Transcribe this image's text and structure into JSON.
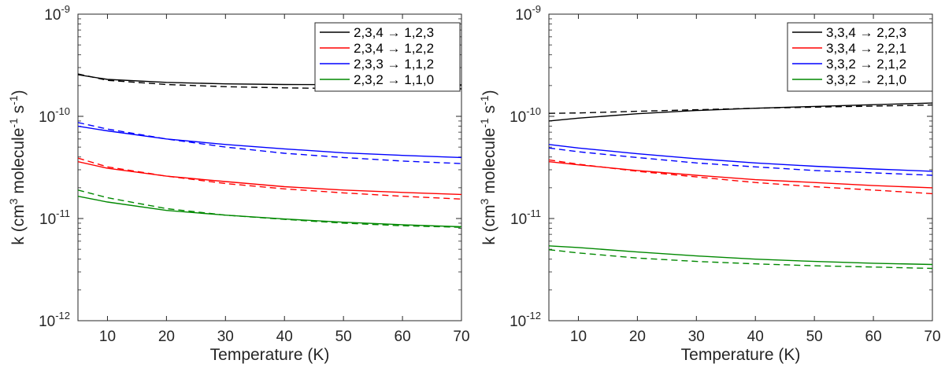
{
  "chart_data": [
    {
      "type": "line",
      "id": "left-panel",
      "xscale": "linear",
      "yscale": "log",
      "xlim": [
        5,
        70
      ],
      "ylim_exp": [
        -12,
        -9
      ],
      "xticks": [
        10,
        20,
        30,
        40,
        50,
        60,
        70
      ],
      "yticks_exp": [
        -12,
        -11,
        -10,
        -9
      ],
      "xlabel": "Temperature (K)",
      "ylabel": {
        "prefix": "k (cm",
        "sup1": "3",
        "middle": " molecule",
        "sup2": "-1",
        "middle2": " s",
        "sup3": "-1",
        "suffix": ")"
      },
      "legend_position": "top-right",
      "x": [
        5,
        10,
        20,
        30,
        40,
        50,
        60,
        70
      ],
      "series": [
        {
          "name": "2,3,4 → 1,2,3",
          "color": "#000000",
          "solid": [
            2.55e-10,
            2.3e-10,
            2.15e-10,
            2.08e-10,
            2.05e-10,
            2.04e-10,
            2.03e-10,
            2.03e-10
          ],
          "dashed": [
            2.6e-10,
            2.25e-10,
            2.05e-10,
            1.95e-10,
            1.9e-10,
            1.87e-10,
            1.86e-10,
            1.86e-10
          ]
        },
        {
          "name": "2,3,4 → 1,2,2",
          "color": "#ff0000",
          "solid": [
            3.6e-11,
            3.1e-11,
            2.6e-11,
            2.3e-11,
            2.05e-11,
            1.9e-11,
            1.8e-11,
            1.72e-11
          ],
          "dashed": [
            3.9e-11,
            3.2e-11,
            2.6e-11,
            2.2e-11,
            1.95e-11,
            1.78e-11,
            1.65e-11,
            1.55e-11
          ]
        },
        {
          "name": "2,3,3 → 1,1,2",
          "color": "#0000ff",
          "solid": [
            8e-11,
            7.2e-11,
            6e-11,
            5.3e-11,
            4.8e-11,
            4.4e-11,
            4.15e-11,
            3.95e-11
          ],
          "dashed": [
            8.7e-11,
            7.5e-11,
            6e-11,
            5e-11,
            4.35e-11,
            3.95e-11,
            3.65e-11,
            3.45e-11
          ]
        },
        {
          "name": "2,3,2 → 1,1,0",
          "color": "#008800",
          "solid": [
            1.65e-11,
            1.45e-11,
            1.2e-11,
            1.08e-11,
            9.9e-12,
            9.2e-12,
            8.7e-12,
            8.3e-12
          ],
          "dashed": [
            1.9e-11,
            1.6e-11,
            1.25e-11,
            1.08e-11,
            9.8e-12,
            9e-12,
            8.5e-12,
            8.2e-12
          ]
        }
      ]
    },
    {
      "type": "line",
      "id": "right-panel",
      "xscale": "linear",
      "yscale": "log",
      "xlim": [
        5,
        70
      ],
      "ylim_exp": [
        -12,
        -9
      ],
      "xticks": [
        10,
        20,
        30,
        40,
        50,
        60,
        70
      ],
      "yticks_exp": [
        -12,
        -11,
        -10,
        -9
      ],
      "xlabel": "Temperature (K)",
      "ylabel": {
        "prefix": "k (cm",
        "sup1": "3",
        "middle": " molecule",
        "sup2": "-1",
        "middle2": " s",
        "sup3": "-1",
        "suffix": ")"
      },
      "legend_position": "top-right",
      "x": [
        5,
        10,
        20,
        30,
        40,
        50,
        60,
        70
      ],
      "series": [
        {
          "name": "3,3,4 → 2,2,3",
          "color": "#000000",
          "solid": [
            9e-11,
            9.6e-11,
            1.06e-10,
            1.14e-10,
            1.2e-10,
            1.25e-10,
            1.3e-10,
            1.35e-10
          ],
          "dashed": [
            1.07e-10,
            1.08e-10,
            1.12e-10,
            1.16e-10,
            1.2e-10,
            1.23e-10,
            1.26e-10,
            1.29e-10
          ]
        },
        {
          "name": "3,3,4 → 2,2,1",
          "color": "#ff0000",
          "solid": [
            3.6e-11,
            3.35e-11,
            2.95e-11,
            2.65e-11,
            2.4e-11,
            2.25e-11,
            2.1e-11,
            2e-11
          ],
          "dashed": [
            3.75e-11,
            3.4e-11,
            2.9e-11,
            2.55e-11,
            2.25e-11,
            2.05e-11,
            1.9e-11,
            1.75e-11
          ]
        },
        {
          "name": "3,3,2 → 2,1,2",
          "color": "#0000ff",
          "solid": [
            5.3e-11,
            4.9e-11,
            4.3e-11,
            3.85e-11,
            3.5e-11,
            3.25e-11,
            3.05e-11,
            2.9e-11
          ],
          "dashed": [
            4.9e-11,
            4.5e-11,
            3.95e-11,
            3.5e-11,
            3.2e-11,
            2.95e-11,
            2.8e-11,
            2.65e-11
          ]
        },
        {
          "name": "3,3,2 → 2,1,0",
          "color": "#008800",
          "solid": [
            5.4e-12,
            5.2e-12,
            4.7e-12,
            4.3e-12,
            4e-12,
            3.8e-12,
            3.65e-12,
            3.55e-12
          ],
          "dashed": [
            4.95e-12,
            4.6e-12,
            4.1e-12,
            3.8e-12,
            3.6e-12,
            3.45e-12,
            3.35e-12,
            3.25e-12
          ]
        }
      ]
    }
  ]
}
